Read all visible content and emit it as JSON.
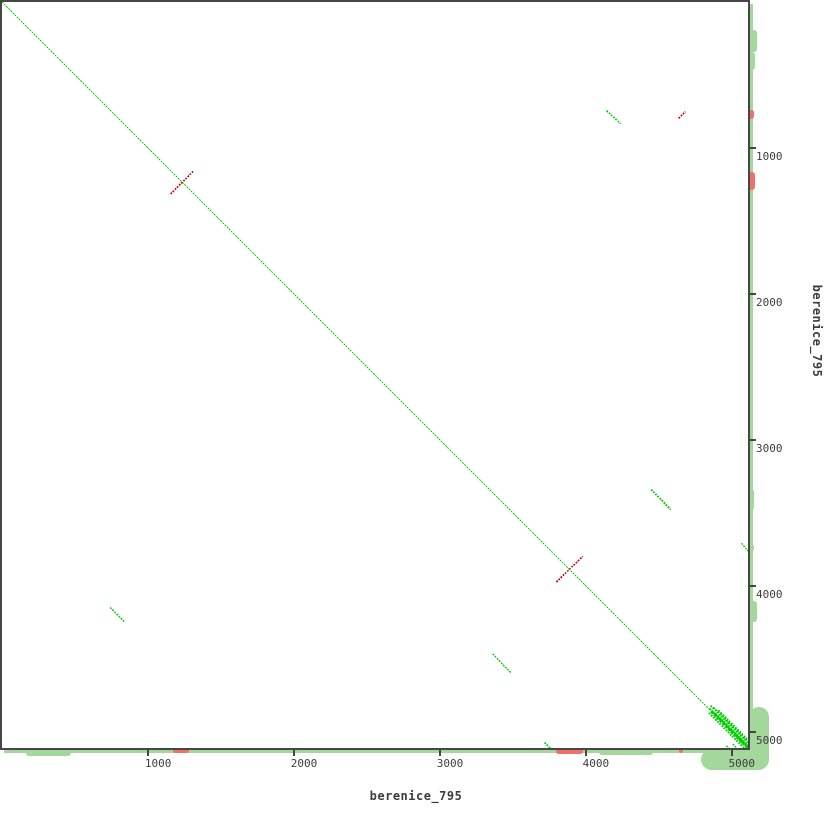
{
  "figure": {
    "background": "#ffffff",
    "axis_color": "#454545",
    "text_color": "#3d3d3d"
  },
  "chart_data": {
    "type": "scatter",
    "subtype": "dna-dotplot-self-alignment",
    "title": "",
    "xlabel": "berenice_795",
    "ylabel": "berenice_795",
    "xlim": [
      0,
      5113
    ],
    "ylim": [
      0,
      5113
    ],
    "x_ticks": [
      "1000",
      "2000",
      "3000",
      "4000",
      "5000"
    ],
    "y_ticks": [
      "1000",
      "2000",
      "3000",
      "4000",
      "5000"
    ],
    "grid": false,
    "legend": false,
    "colors": {
      "forward_match": "#00d000",
      "reverse_match": "#cc1010",
      "margin_green": "#a3d79c",
      "margin_red": "#f0716b"
    },
    "segments": [
      {
        "x1": 0,
        "y1": 0,
        "x2": 5113,
        "y2": 5113,
        "dir": "fwd",
        "w": 1.4
      },
      {
        "x1": 1155,
        "y1": 1315,
        "x2": 1315,
        "y2": 1155,
        "dir": "rev",
        "w": 1.6
      },
      {
        "x1": 4145,
        "y1": 745,
        "x2": 4240,
        "y2": 835,
        "dir": "fwd",
        "w": 1.6
      },
      {
        "x1": 4638,
        "y1": 798,
        "x2": 4683,
        "y2": 752,
        "dir": "rev",
        "w": 1.6
      },
      {
        "x1": 4448,
        "y1": 3342,
        "x2": 4583,
        "y2": 3478,
        "dir": "fwd",
        "w": 1.8
      },
      {
        "x1": 3800,
        "y1": 3975,
        "x2": 3980,
        "y2": 3800,
        "dir": "rev",
        "w": 1.6
      },
      {
        "x1": 742,
        "y1": 4150,
        "x2": 840,
        "y2": 4248,
        "dir": "fwd",
        "w": 1.4
      },
      {
        "x1": 3363,
        "y1": 4468,
        "x2": 3486,
        "y2": 4595,
        "dir": "fwd",
        "w": 1.4
      },
      {
        "x1": 5068,
        "y1": 3710,
        "x2": 5122,
        "y2": 3772,
        "dir": "fwd",
        "w": 1.4
      },
      {
        "x1": 3718,
        "y1": 5076,
        "x2": 3768,
        "y2": 5124,
        "dir": "fwd",
        "w": 1.6
      },
      {
        "x1": 4856,
        "y1": 4822,
        "x2": 5113,
        "y2": 5079,
        "dir": "fwd",
        "w": 2
      },
      {
        "x1": 4850,
        "y1": 4843,
        "x2": 5110,
        "y2": 5103,
        "dir": "fwd",
        "w": 2
      },
      {
        "x1": 4862,
        "y1": 4862,
        "x2": 5113,
        "y2": 5113,
        "dir": "fwd",
        "w": 3
      },
      {
        "x1": 4845,
        "y1": 4872,
        "x2": 5086,
        "y2": 5113,
        "dir": "fwd",
        "w": 2
      },
      {
        "x1": 4878,
        "y1": 4836,
        "x2": 5113,
        "y2": 5071,
        "dir": "fwd",
        "w": 1.5
      },
      {
        "x1": 4890,
        "y1": 4876,
        "x2": 5113,
        "y2": 5099,
        "dir": "fwd",
        "w": 2
      },
      {
        "x1": 4910,
        "y1": 4855,
        "x2": 5113,
        "y2": 5058,
        "dir": "fwd",
        "w": 1.5
      },
      {
        "x1": 4930,
        "y1": 4916,
        "x2": 5113,
        "y2": 5099,
        "dir": "fwd",
        "w": 2
      },
      {
        "x1": 5008,
        "y1": 5085,
        "x2": 5047,
        "y2": 5124,
        "dir": "fwd",
        "w": 1.5
      },
      {
        "x1": 4965,
        "y1": 5098,
        "x2": 4995,
        "y2": 5128,
        "dir": "fwd",
        "w": 1.5
      },
      {
        "x1": 5053,
        "y1": 5053,
        "x2": 5128,
        "y2": 5128,
        "dir": "fwd",
        "w": 1.5
      }
    ],
    "margin_density": {
      "right": [
        {
          "from": 14,
          "to": 5113,
          "depth": 4,
          "color": "green"
        },
        {
          "from": 195,
          "to": 345,
          "depth": 8,
          "color": "green"
        },
        {
          "from": 340,
          "to": 466,
          "depth": 6,
          "color": "green"
        },
        {
          "from": 740,
          "to": 800,
          "depth": 5,
          "color": "red"
        },
        {
          "from": 1165,
          "to": 1290,
          "depth": 6,
          "color": "red"
        },
        {
          "from": 3340,
          "to": 3480,
          "depth": 5,
          "color": "green"
        },
        {
          "from": 3715,
          "to": 3765,
          "depth": 5,
          "color": "green"
        },
        {
          "from": 4105,
          "to": 4250,
          "depth": 8,
          "color": "green"
        },
        {
          "from": 4830,
          "to": 5250,
          "depth": 20,
          "color": "green"
        }
      ],
      "bottom": [
        {
          "from": 14,
          "to": 5160,
          "depth": 4,
          "color": "green"
        },
        {
          "from": 165,
          "to": 470,
          "depth": 7,
          "color": "green"
        },
        {
          "from": 740,
          "to": 840,
          "depth": 4,
          "color": "green"
        },
        {
          "from": 1170,
          "to": 1285,
          "depth": 4,
          "color": "red"
        },
        {
          "from": 3355,
          "to": 3465,
          "depth": 4,
          "color": "green"
        },
        {
          "from": 3715,
          "to": 3755,
          "depth": 3,
          "color": "green"
        },
        {
          "from": 3795,
          "to": 3985,
          "depth": 5,
          "color": "red"
        },
        {
          "from": 4095,
          "to": 4460,
          "depth": 6,
          "color": "green"
        },
        {
          "from": 4640,
          "to": 4665,
          "depth": 4,
          "color": "red"
        },
        {
          "from": 4790,
          "to": 5260,
          "depth": 21,
          "color": "green"
        }
      ]
    }
  }
}
